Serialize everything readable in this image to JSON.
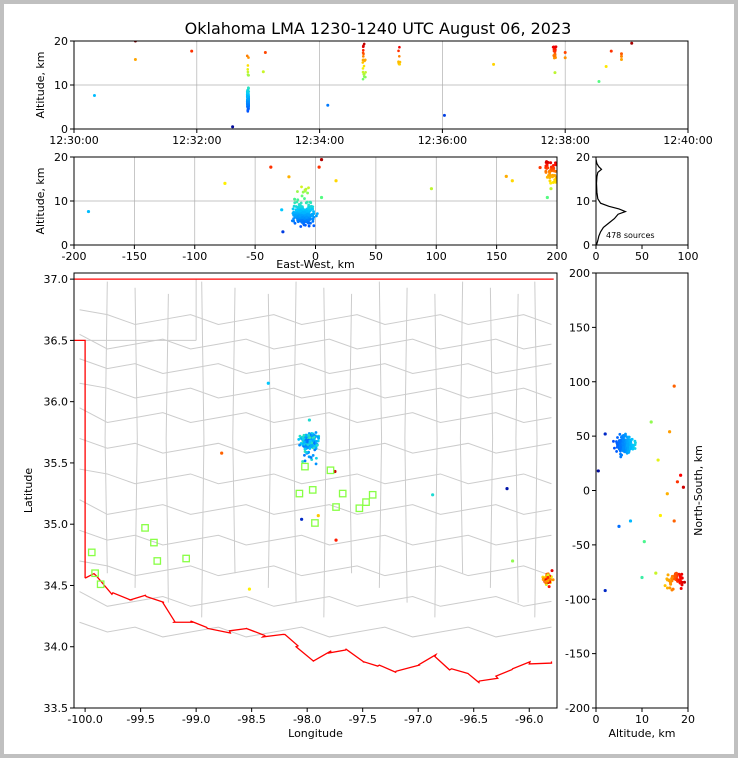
{
  "title": "Oklahoma LMA 1230-1240 UTC August 06, 2023",
  "colors": {
    "red": "#ff0000",
    "outline": "#cccccc",
    "marker": "#88ff44",
    "blue": "#00a0ff"
  },
  "chart_data": [
    {
      "id": "time-altitude",
      "type": "scatter",
      "ylabel": "Altitude, km",
      "xlim": [
        "12:30:00",
        "12:40:00"
      ],
      "ylim": [
        0,
        20
      ],
      "xticks": [
        "12:30:00",
        "12:32:00",
        "12:34:00",
        "12:36:00",
        "12:38:00",
        "12:40:00"
      ],
      "yticks": [
        "0",
        "10",
        "20"
      ],
      "grid": true
    },
    {
      "id": "ew-altitude",
      "type": "scatter",
      "xlabel": "East-West, km",
      "ylabel": "Altitude, km",
      "xlim": [
        -200,
        200
      ],
      "ylim": [
        0,
        20
      ],
      "xticks": [
        "-200",
        "-150",
        "-100",
        "-50",
        "0",
        "50",
        "100",
        "150",
        "200"
      ],
      "yticks": [
        "0",
        "10",
        "20"
      ],
      "grid": true
    },
    {
      "id": "altitude-histogram",
      "type": "line",
      "xlim": [
        0,
        100
      ],
      "ylim": [
        0,
        20
      ],
      "xticks": [
        "0",
        "50",
        "100"
      ],
      "yticks": [
        "0",
        "10",
        "20"
      ],
      "annotation": "478 sources",
      "profile": [
        [
          0.5,
          0
        ],
        [
          2,
          1
        ],
        [
          3,
          2
        ],
        [
          5,
          3
        ],
        [
          8,
          4
        ],
        [
          14,
          5
        ],
        [
          20,
          6
        ],
        [
          24,
          7
        ],
        [
          32,
          7.6
        ],
        [
          25,
          8.2
        ],
        [
          14,
          8.8
        ],
        [
          5,
          9.5
        ],
        [
          2,
          10.5
        ],
        [
          1,
          12
        ],
        [
          0.5,
          14
        ],
        [
          1,
          15.5
        ],
        [
          2,
          16.5
        ],
        [
          6,
          17.2
        ],
        [
          3,
          17.8
        ],
        [
          1,
          18.5
        ],
        [
          0,
          19.5
        ]
      ]
    },
    {
      "id": "map",
      "type": "scatter",
      "xlabel": "Longitude",
      "ylabel": "Latitude",
      "xlim": [
        -100.1,
        -95.75
      ],
      "ylim": [
        33.5,
        37.05
      ],
      "xticks": [
        "-100.0",
        "-99.5",
        "-99.0",
        "-98.5",
        "-98.0",
        "-97.5",
        "-97.0",
        "-96.5",
        "-96.0"
      ],
      "yticks": [
        "33.5",
        "34.0",
        "34.5",
        "35.0",
        "35.5",
        "36.0",
        "36.5",
        "37.0"
      ],
      "stations": [
        [
          -99.94,
          34.77
        ],
        [
          -99.91,
          34.6
        ],
        [
          -99.86,
          34.51
        ],
        [
          -99.46,
          34.97
        ],
        [
          -99.38,
          34.85
        ],
        [
          -99.35,
          34.7
        ],
        [
          -99.09,
          34.72
        ],
        [
          -98.02,
          35.47
        ],
        [
          -97.95,
          35.28
        ],
        [
          -98.07,
          35.25
        ],
        [
          -97.93,
          35.01
        ],
        [
          -97.79,
          35.44
        ],
        [
          -97.74,
          35.14
        ],
        [
          -97.68,
          35.25
        ],
        [
          -97.53,
          35.13
        ],
        [
          -97.47,
          35.18
        ],
        [
          -97.41,
          35.24
        ]
      ]
    },
    {
      "id": "altitude-ns",
      "type": "scatter",
      "xlabel": "Altitude, km",
      "ylabel": "North-South, km",
      "xlim": [
        0,
        20
      ],
      "ylim": [
        -200,
        200
      ],
      "xticks": [
        "0",
        "10",
        "20"
      ],
      "yticks": [
        "-200",
        "-150",
        "-100",
        "-50",
        "0",
        "50",
        "100",
        "150",
        "200"
      ]
    }
  ]
}
